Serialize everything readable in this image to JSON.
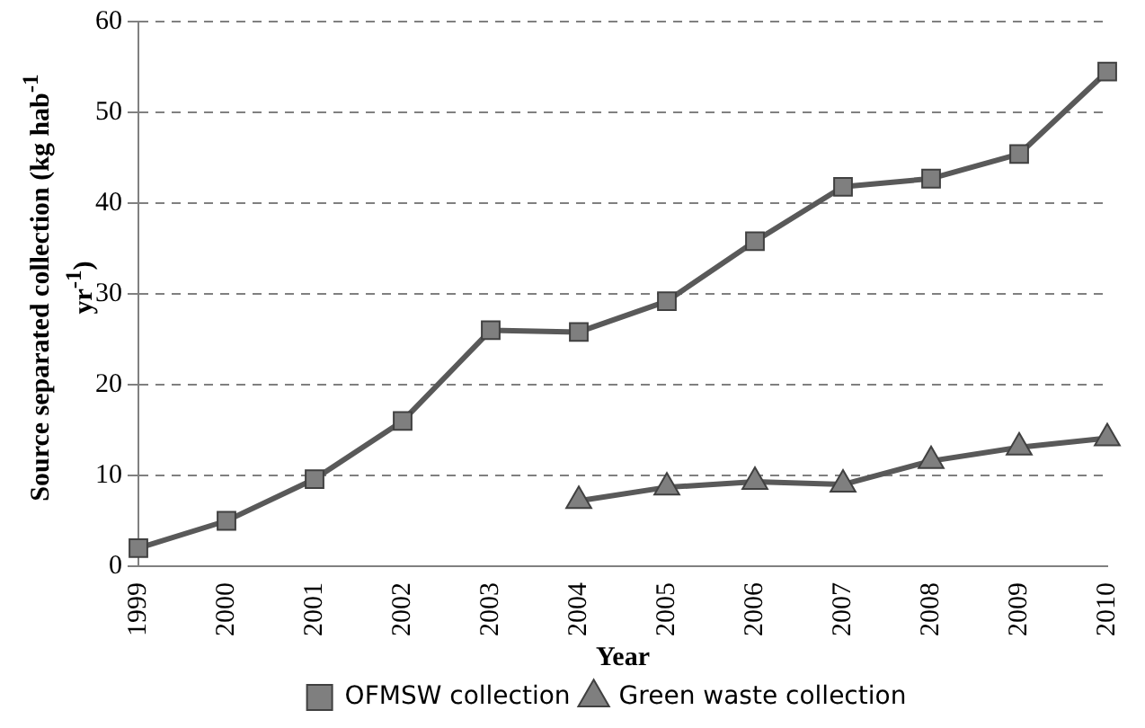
{
  "chart_data": {
    "type": "line",
    "xlabel": "Year",
    "ylabel": "Source separated collection (kg hab$^{-1}$ yr$^{-1}$)",
    "categories": [
      "1999",
      "2000",
      "2001",
      "2002",
      "2003",
      "2004",
      "2005",
      "2006",
      "2007",
      "2008",
      "2009",
      "2010"
    ],
    "series": [
      {
        "name": "OFMSW collection",
        "color": "#7f7f7f",
        "marker": "square",
        "values": [
          2.0,
          5.0,
          9.6,
          16.0,
          26.0,
          25.8,
          29.2,
          35.8,
          41.8,
          42.7,
          45.4,
          54.5
        ]
      },
      {
        "name": "Green waste collection",
        "color": "#7f7f7f",
        "marker": "triangle",
        "values": [
          null,
          null,
          null,
          null,
          null,
          7.2,
          8.7,
          9.3,
          9.0,
          11.6,
          13.1,
          14.1
        ]
      }
    ],
    "ylim": [
      0,
      60
    ],
    "yticks": [
      0,
      10,
      20,
      30,
      40,
      50,
      60
    ],
    "grid": "y",
    "legend": "bottom",
    "line_style": "solid"
  }
}
